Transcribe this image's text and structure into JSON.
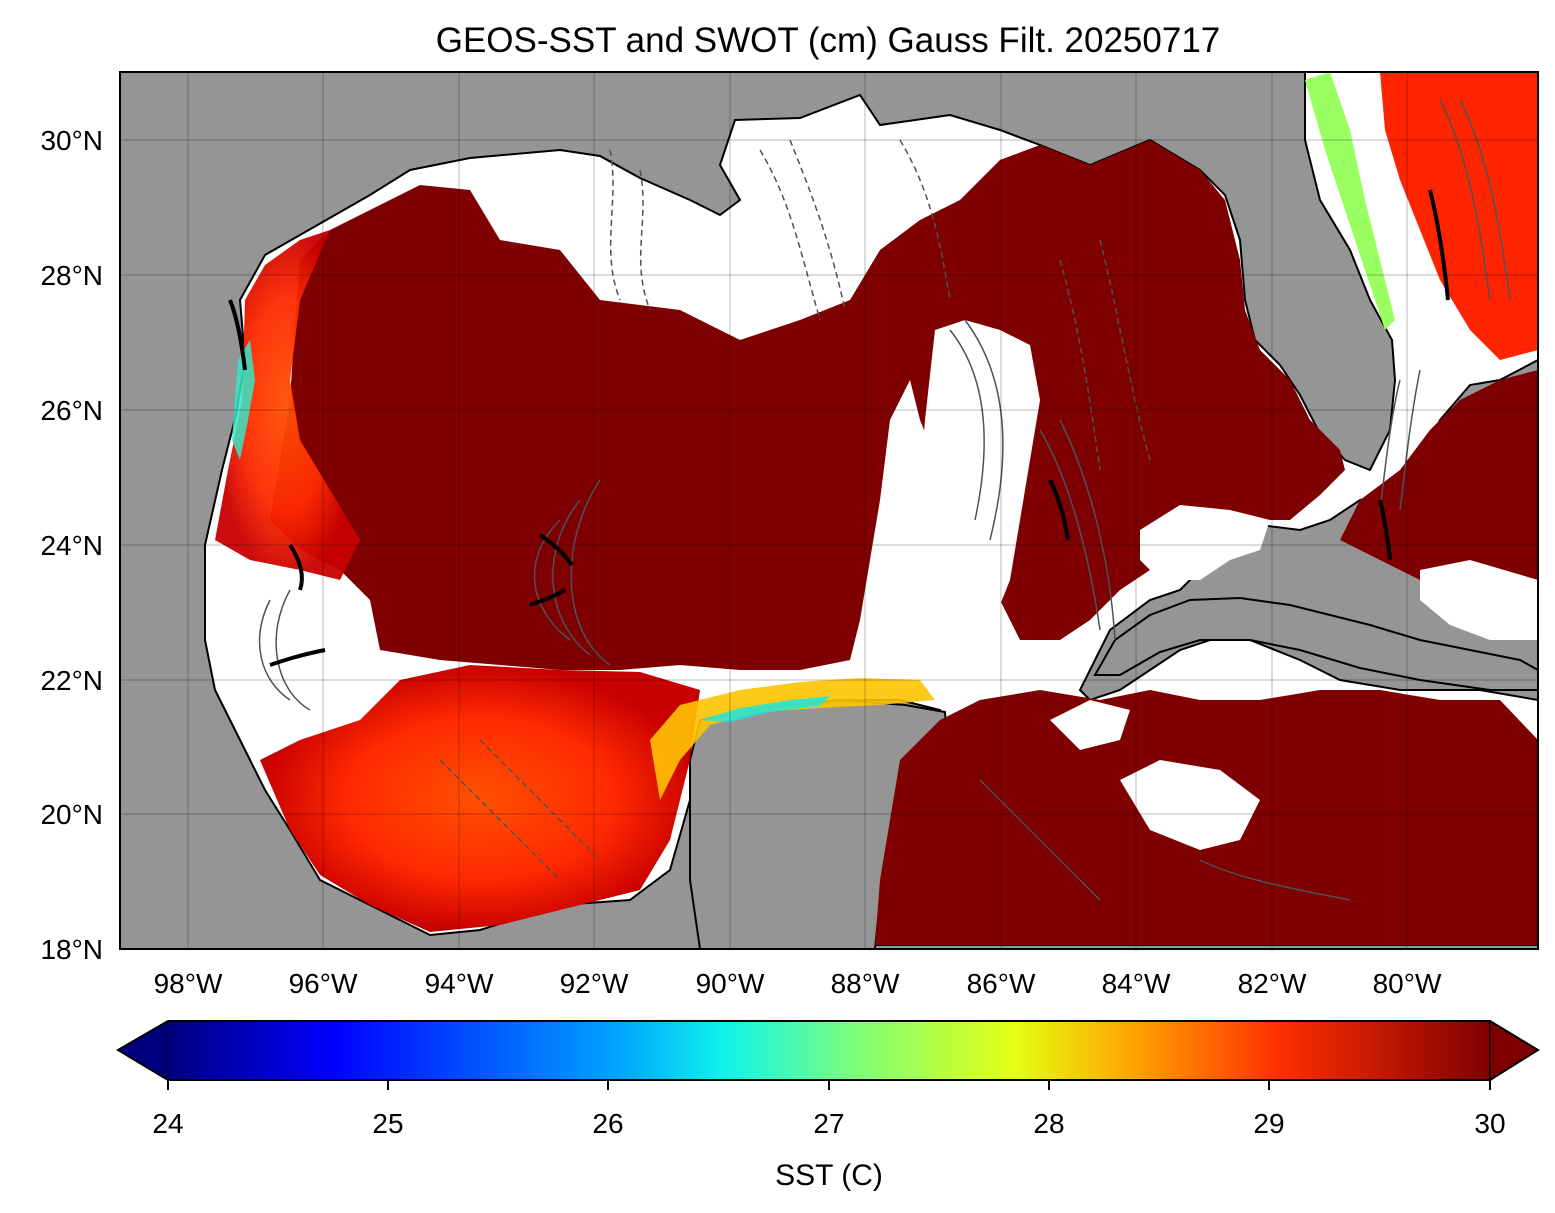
{
  "figure": {
    "title": "GEOS-SST  and SWOT (cm) Gauss Filt. 20250717"
  },
  "map": {
    "lon_range": [
      -99,
      -78.2
    ],
    "lat_range": [
      18,
      31
    ],
    "lat_tick_labels": [
      "18°N",
      "20°N",
      "22°N",
      "24°N",
      "26°N",
      "28°N",
      "30°N"
    ],
    "lon_tick_labels": [
      "98°W",
      "96°W",
      "94°W",
      "92°W",
      "90°W",
      "88°W",
      "86°W",
      "84°W",
      "82°W",
      "80°W"
    ],
    "land_color": "#959595",
    "no_data_color": "#ffffff",
    "contour_color": "#4b535a",
    "gridlines": true
  },
  "colorbar": {
    "label": "SST (C)",
    "tick_labels": [
      "24",
      "25",
      "26",
      "27",
      "28",
      "29",
      "30"
    ],
    "range": [
      24,
      30
    ],
    "extend": "both",
    "colormap": "jet",
    "colormap_stops": [
      "#00007f",
      "#0000ff",
      "#00a4ff",
      "#0ff2ed",
      "#7dff7a",
      "#e4ff13",
      "#ffa400",
      "#ff3000",
      "#7f0000"
    ]
  }
}
